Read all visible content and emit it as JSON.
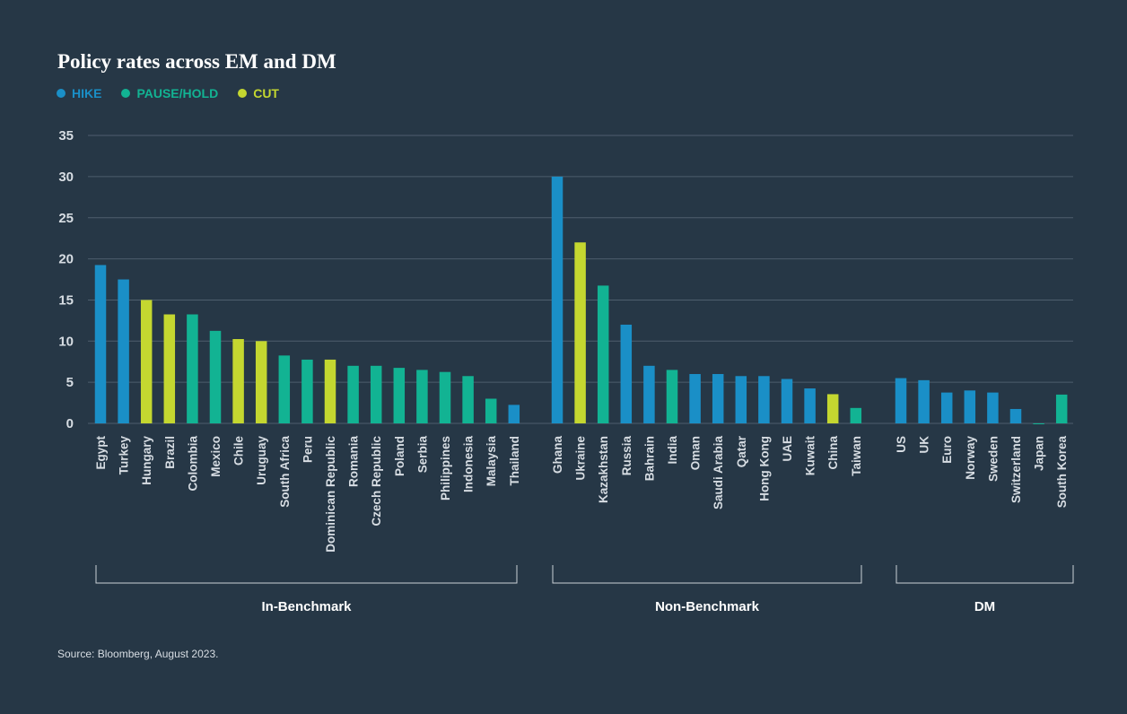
{
  "title": "Policy rates across EM and DM",
  "source": "Source: Bloomberg, August 2023.",
  "colors": {
    "background": "#263746",
    "hike": "#1a8fc7",
    "pause": "#12b393",
    "cut": "#c4d730",
    "grid": "#4e5e6d",
    "text": "#ffffff",
    "tick": "#d7dde3"
  },
  "legend": [
    {
      "key": "hike",
      "label": "HIKE"
    },
    {
      "key": "pause",
      "label": "PAUSE/HOLD"
    },
    {
      "key": "cut",
      "label": "CUT"
    }
  ],
  "chart_data": {
    "type": "bar",
    "title": "Policy rates across EM and DM",
    "ylim": [
      0,
      35
    ],
    "yticks": [
      0,
      5,
      10,
      15,
      20,
      25,
      30,
      35
    ],
    "grid": true,
    "legend_position": "top-left",
    "groups": [
      {
        "name": "In-Benchmark",
        "bars": [
          {
            "country": "Egypt",
            "value": 19.25,
            "stance": "hike"
          },
          {
            "country": "Turkey",
            "value": 17.5,
            "stance": "hike"
          },
          {
            "country": "Hungary",
            "value": 15.0,
            "stance": "cut"
          },
          {
            "country": "Brazil",
            "value": 13.25,
            "stance": "cut"
          },
          {
            "country": "Colombia",
            "value": 13.25,
            "stance": "pause"
          },
          {
            "country": "Mexico",
            "value": 11.25,
            "stance": "pause"
          },
          {
            "country": "Chile",
            "value": 10.25,
            "stance": "cut"
          },
          {
            "country": "Uruguay",
            "value": 10.0,
            "stance": "cut"
          },
          {
            "country": "South Africa",
            "value": 8.25,
            "stance": "pause"
          },
          {
            "country": "Peru",
            "value": 7.75,
            "stance": "pause"
          },
          {
            "country": "Dominican Republic",
            "value": 7.75,
            "stance": "cut"
          },
          {
            "country": "Romania",
            "value": 7.0,
            "stance": "pause"
          },
          {
            "country": "Czech Republic",
            "value": 7.0,
            "stance": "pause"
          },
          {
            "country": "Poland",
            "value": 6.75,
            "stance": "pause"
          },
          {
            "country": "Serbia",
            "value": 6.5,
            "stance": "pause"
          },
          {
            "country": "Philippines",
            "value": 6.25,
            "stance": "pause"
          },
          {
            "country": "Indonesia",
            "value": 5.75,
            "stance": "pause"
          },
          {
            "country": "Malaysia",
            "value": 3.0,
            "stance": "pause"
          },
          {
            "country": "Thailand",
            "value": 2.25,
            "stance": "hike"
          }
        ]
      },
      {
        "name": "Non-Benchmark",
        "bars": [
          {
            "country": "Ghana",
            "value": 30.0,
            "stance": "hike"
          },
          {
            "country": "Ukraine",
            "value": 22.0,
            "stance": "cut"
          },
          {
            "country": "Kazakhstan",
            "value": 16.75,
            "stance": "pause"
          },
          {
            "country": "Russia",
            "value": 12.0,
            "stance": "hike"
          },
          {
            "country": "Bahrain",
            "value": 7.0,
            "stance": "hike"
          },
          {
            "country": "India",
            "value": 6.5,
            "stance": "pause"
          },
          {
            "country": "Oman",
            "value": 6.0,
            "stance": "hike"
          },
          {
            "country": "Saudi Arabia",
            "value": 6.0,
            "stance": "hike"
          },
          {
            "country": "Qatar",
            "value": 5.75,
            "stance": "hike"
          },
          {
            "country": "Hong Kong",
            "value": 5.75,
            "stance": "hike"
          },
          {
            "country": "UAE",
            "value": 5.4,
            "stance": "hike"
          },
          {
            "country": "Kuwait",
            "value": 4.25,
            "stance": "hike"
          },
          {
            "country": "China",
            "value": 3.55,
            "stance": "cut"
          },
          {
            "country": "Taiwan",
            "value": 1.875,
            "stance": "pause"
          }
        ]
      },
      {
        "name": "DM",
        "bars": [
          {
            "country": "US",
            "value": 5.5,
            "stance": "hike"
          },
          {
            "country": "UK",
            "value": 5.25,
            "stance": "hike"
          },
          {
            "country": "Euro",
            "value": 3.75,
            "stance": "hike"
          },
          {
            "country": "Norway",
            "value": 4.0,
            "stance": "hike"
          },
          {
            "country": "Sweden",
            "value": 3.75,
            "stance": "hike"
          },
          {
            "country": "Switzerland",
            "value": 1.75,
            "stance": "hike"
          },
          {
            "country": "Japan",
            "value": -0.1,
            "stance": "pause"
          },
          {
            "country": "South Korea",
            "value": 3.5,
            "stance": "pause"
          }
        ]
      }
    ]
  }
}
